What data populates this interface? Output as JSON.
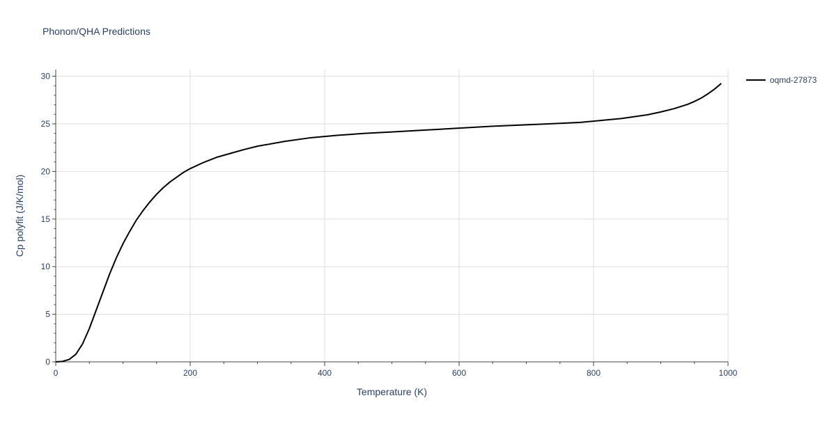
{
  "chart_data": {
    "type": "line",
    "title": "Phonon/QHA Predictions",
    "xlabel": "Temperature (K)",
    "ylabel": "Cp polyfit (J/K/mol)",
    "xlim": [
      0,
      1000
    ],
    "ylim": [
      0,
      30.7
    ],
    "x_ticks": [
      0,
      200,
      400,
      600,
      800,
      1000
    ],
    "y_ticks": [
      0,
      5,
      10,
      15,
      20,
      25,
      30
    ],
    "grid": true,
    "legend_placement": "top-right",
    "series": [
      {
        "name": "oqmd-27873",
        "color": "#000000",
        "x": [
          0,
          10,
          20,
          30,
          40,
          50,
          60,
          70,
          80,
          90,
          100,
          110,
          120,
          130,
          140,
          150,
          160,
          170,
          180,
          190,
          200,
          220,
          240,
          260,
          280,
          300,
          340,
          380,
          420,
          460,
          500,
          550,
          600,
          650,
          700,
          750,
          780,
          800,
          820,
          840,
          860,
          880,
          900,
          920,
          940,
          950,
          960,
          970,
          980,
          990
        ],
        "y": [
          0.0,
          0.05,
          0.25,
          0.8,
          1.9,
          3.5,
          5.4,
          7.3,
          9.2,
          10.9,
          12.4,
          13.7,
          14.9,
          15.9,
          16.8,
          17.6,
          18.3,
          18.9,
          19.4,
          19.9,
          20.3,
          20.95,
          21.5,
          21.9,
          22.3,
          22.65,
          23.15,
          23.55,
          23.8,
          24.0,
          24.15,
          24.35,
          24.55,
          24.75,
          24.9,
          25.05,
          25.15,
          25.28,
          25.42,
          25.55,
          25.75,
          25.95,
          26.25,
          26.6,
          27.05,
          27.35,
          27.7,
          28.15,
          28.65,
          29.25
        ]
      }
    ]
  }
}
